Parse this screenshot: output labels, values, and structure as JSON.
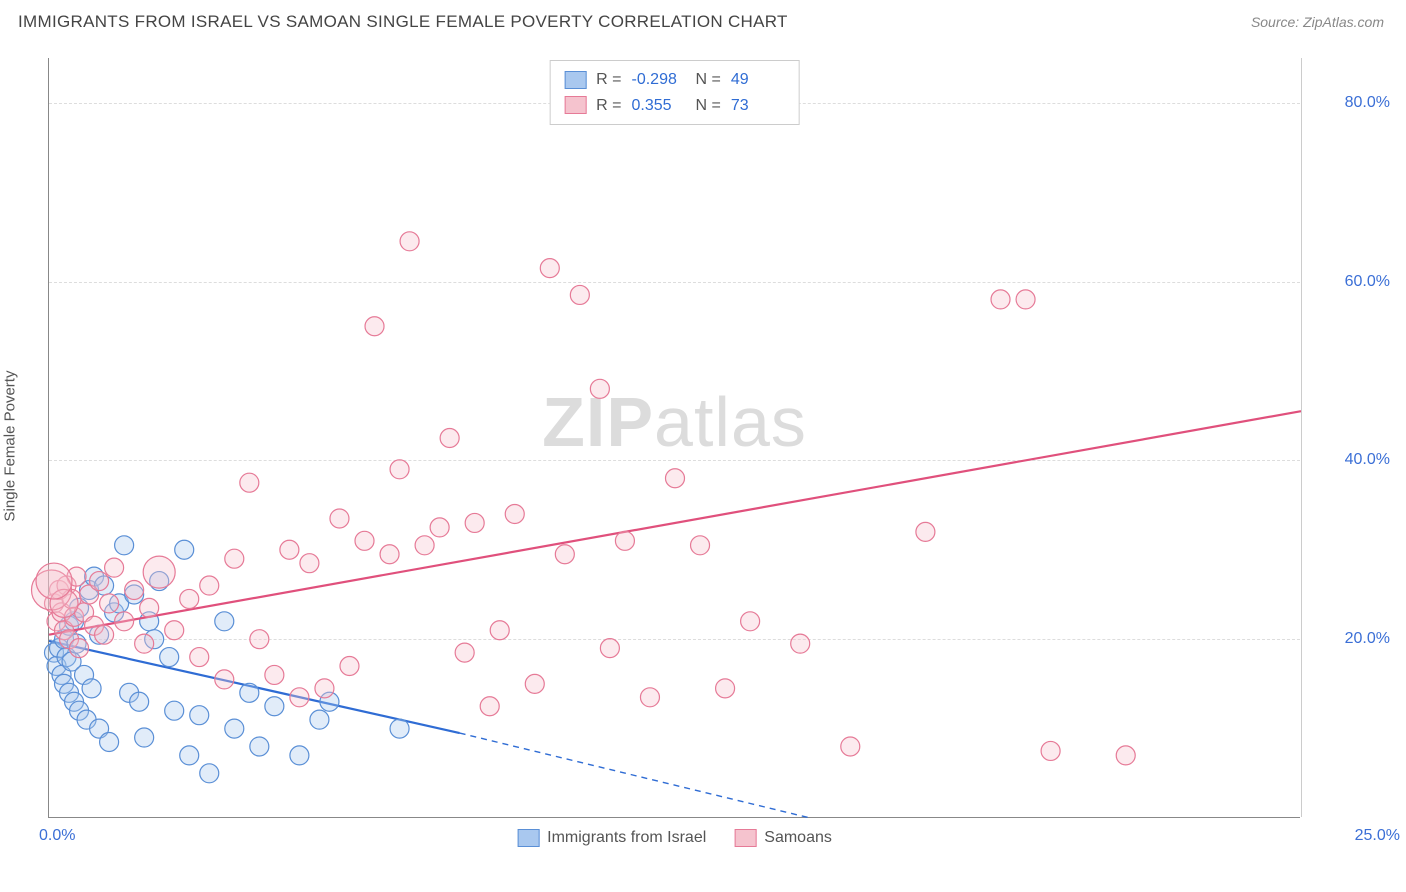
{
  "title": "IMMIGRANTS FROM ISRAEL VS SAMOAN SINGLE FEMALE POVERTY CORRELATION CHART",
  "source": "Source: ZipAtlas.com",
  "watermark_a": "ZIP",
  "watermark_b": "atlas",
  "ylabel": "Single Female Poverty",
  "chart": {
    "type": "scatter",
    "xlim": [
      0,
      25
    ],
    "ylim": [
      0,
      85
    ],
    "xtick_left": "0.0%",
    "xtick_right": "25.0%",
    "yticks": [
      {
        "v": 20,
        "label": "20.0%"
      },
      {
        "v": 40,
        "label": "40.0%"
      },
      {
        "v": 60,
        "label": "60.0%"
      },
      {
        "v": 80,
        "label": "80.0%"
      }
    ],
    "grid_color": "#dddddd",
    "axis_color": "#888888",
    "label_color": "#3b6fd6",
    "background_color": "#ffffff",
    "marker_radius": 9.5,
    "marker_stroke_width": 1.2,
    "marker_fill_opacity": 0.35,
    "trend_line_width": 2.2
  },
  "series": [
    {
      "name": "Immigrants from Israel",
      "color_fill": "#a9c8ef",
      "color_stroke": "#5a8fd6",
      "line_color": "#2f6cd4",
      "R": "-0.298",
      "N": "49",
      "trend": {
        "x1": 0,
        "y1": 19.8,
        "x2": 8.2,
        "y2": 9.5,
        "x2_dash": 15.2,
        "y2_dash": 0
      },
      "points": [
        [
          0.1,
          18.5
        ],
        [
          0.15,
          17.0
        ],
        [
          0.2,
          19.0
        ],
        [
          0.25,
          16.0
        ],
        [
          0.3,
          15.0
        ],
        [
          0.3,
          20.0
        ],
        [
          0.35,
          18.0
        ],
        [
          0.4,
          14.0
        ],
        [
          0.4,
          21.5
        ],
        [
          0.45,
          17.5
        ],
        [
          0.5,
          13.0
        ],
        [
          0.5,
          22.0
        ],
        [
          0.55,
          19.5
        ],
        [
          0.6,
          12.0
        ],
        [
          0.6,
          23.5
        ],
        [
          0.7,
          16.0
        ],
        [
          0.75,
          11.0
        ],
        [
          0.8,
          25.5
        ],
        [
          0.85,
          14.5
        ],
        [
          0.9,
          27.0
        ],
        [
          1.0,
          10.0
        ],
        [
          1.0,
          20.5
        ],
        [
          1.1,
          26.0
        ],
        [
          1.2,
          8.5
        ],
        [
          1.3,
          23.0
        ],
        [
          1.4,
          24.0
        ],
        [
          1.5,
          30.5
        ],
        [
          1.6,
          14.0
        ],
        [
          1.7,
          25.0
        ],
        [
          1.8,
          13.0
        ],
        [
          1.9,
          9.0
        ],
        [
          2.0,
          22.0
        ],
        [
          2.1,
          20.0
        ],
        [
          2.2,
          26.5
        ],
        [
          2.4,
          18.0
        ],
        [
          2.5,
          12.0
        ],
        [
          2.7,
          30.0
        ],
        [
          2.8,
          7.0
        ],
        [
          3.0,
          11.5
        ],
        [
          3.2,
          5.0
        ],
        [
          3.5,
          22.0
        ],
        [
          3.7,
          10.0
        ],
        [
          4.0,
          14.0
        ],
        [
          4.2,
          8.0
        ],
        [
          4.5,
          12.5
        ],
        [
          5.0,
          7.0
        ],
        [
          5.4,
          11.0
        ],
        [
          5.6,
          13.0
        ],
        [
          7.0,
          10.0
        ]
      ]
    },
    {
      "name": "Samoans",
      "color_fill": "#f5c3ce",
      "color_stroke": "#e67a97",
      "line_color": "#e0507c",
      "R": "0.355",
      "N": "73",
      "trend": {
        "x1": 0,
        "y1": 20.5,
        "x2": 25,
        "y2": 45.5
      },
      "points": [
        [
          0.1,
          24.0
        ],
        [
          0.15,
          22.0
        ],
        [
          0.2,
          25.5
        ],
        [
          0.25,
          23.0
        ],
        [
          0.3,
          21.0
        ],
        [
          0.35,
          26.0
        ],
        [
          0.4,
          20.0
        ],
        [
          0.45,
          24.5
        ],
        [
          0.5,
          22.5
        ],
        [
          0.55,
          27.0
        ],
        [
          0.6,
          19.0
        ],
        [
          0.7,
          23.0
        ],
        [
          0.8,
          25.0
        ],
        [
          0.9,
          21.5
        ],
        [
          1.0,
          26.5
        ],
        [
          1.1,
          20.5
        ],
        [
          1.2,
          24.0
        ],
        [
          1.3,
          28.0
        ],
        [
          1.5,
          22.0
        ],
        [
          1.7,
          25.5
        ],
        [
          1.9,
          19.5
        ],
        [
          2.0,
          23.5
        ],
        [
          2.2,
          27.5,
          16
        ],
        [
          2.5,
          21.0
        ],
        [
          2.8,
          24.5
        ],
        [
          3.0,
          18.0
        ],
        [
          3.2,
          26.0
        ],
        [
          3.5,
          15.5
        ],
        [
          3.7,
          29.0
        ],
        [
          4.0,
          37.5
        ],
        [
          4.2,
          20.0
        ],
        [
          4.5,
          16.0
        ],
        [
          4.8,
          30.0
        ],
        [
          5.0,
          13.5
        ],
        [
          5.2,
          28.5
        ],
        [
          5.5,
          14.5
        ],
        [
          5.8,
          33.5
        ],
        [
          6.0,
          17.0
        ],
        [
          6.3,
          31.0
        ],
        [
          6.5,
          55.0
        ],
        [
          6.8,
          29.5
        ],
        [
          7.0,
          39.0
        ],
        [
          7.2,
          64.5
        ],
        [
          7.5,
          30.5
        ],
        [
          7.8,
          32.5
        ],
        [
          8.0,
          42.5
        ],
        [
          8.3,
          18.5
        ],
        [
          8.5,
          33.0
        ],
        [
          8.8,
          12.5
        ],
        [
          9.0,
          21.0
        ],
        [
          9.3,
          34.0
        ],
        [
          9.7,
          15.0
        ],
        [
          10.0,
          61.5
        ],
        [
          10.3,
          29.5
        ],
        [
          10.6,
          58.5
        ],
        [
          11.0,
          48.0
        ],
        [
          11.2,
          19.0
        ],
        [
          11.5,
          31.0
        ],
        [
          12.0,
          13.5
        ],
        [
          12.5,
          38.0
        ],
        [
          13.0,
          30.5
        ],
        [
          13.5,
          14.5
        ],
        [
          14.0,
          22.0
        ],
        [
          15.0,
          19.5
        ],
        [
          16.0,
          8.0
        ],
        [
          17.5,
          32.0
        ],
        [
          19.0,
          58.0
        ],
        [
          19.5,
          58.0
        ],
        [
          20.0,
          7.5
        ],
        [
          21.5,
          7.0
        ],
        [
          0.05,
          25.5,
          20
        ],
        [
          0.3,
          24.0,
          14
        ],
        [
          0.1,
          26.5,
          18
        ]
      ]
    }
  ]
}
